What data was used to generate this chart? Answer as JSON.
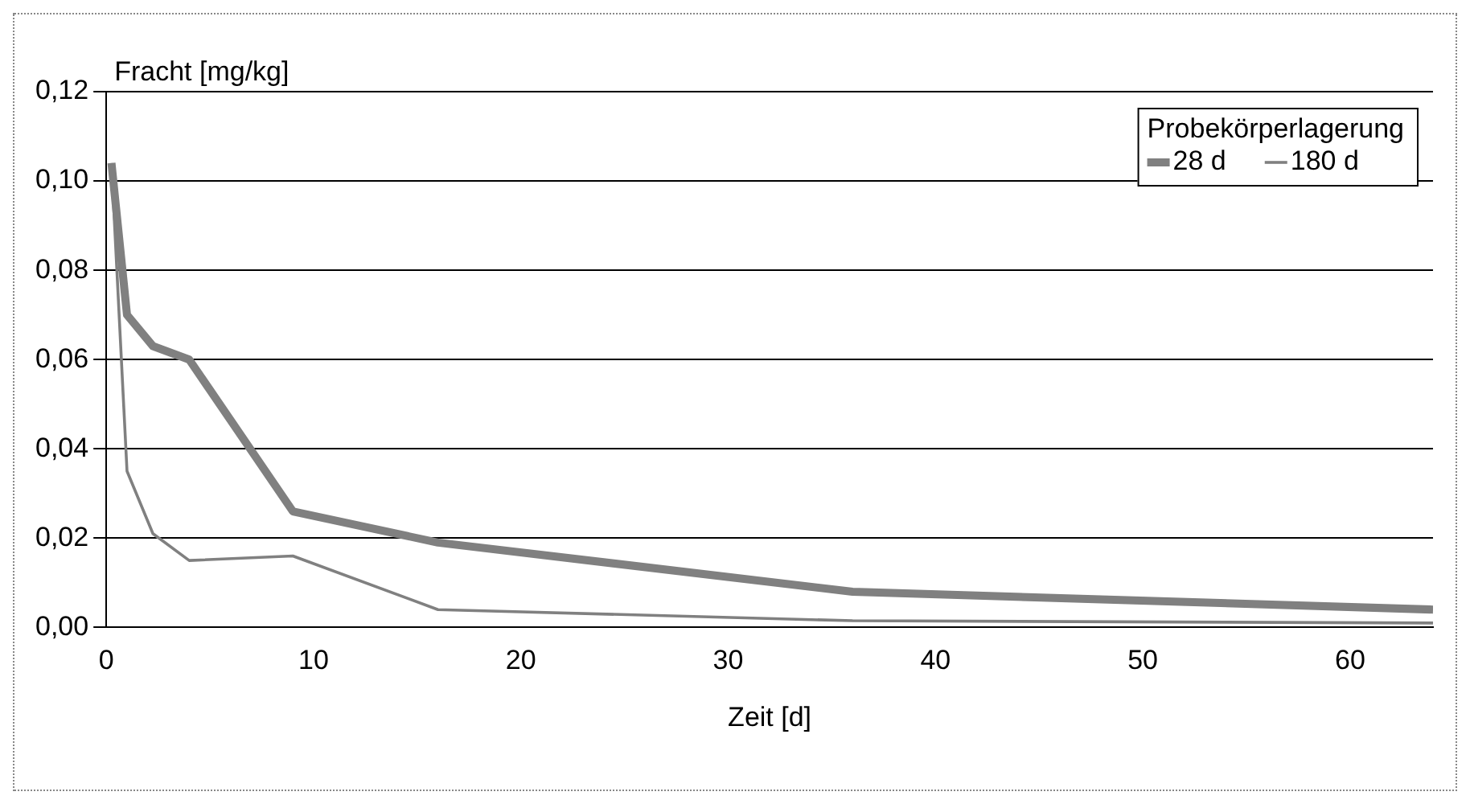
{
  "chart_data": {
    "type": "line",
    "xlabel": "Zeit [d]",
    "ylabel": "Fracht [mg/kg]",
    "legend_title": "Probekörperlagerung",
    "series": [
      {
        "name": "28 d",
        "color": "#808080",
        "x": [
          0.25,
          1,
          2.25,
          4,
          9,
          16,
          36,
          64
        ],
        "values": [
          0.104,
          0.07,
          0.063,
          0.06,
          0.026,
          0.019,
          0.008,
          0.004
        ]
      },
      {
        "name": "180 d",
        "color": "#808080",
        "x": [
          0.25,
          1,
          2.25,
          4,
          9,
          16,
          36,
          64
        ],
        "values": [
          0.104,
          0.035,
          0.021,
          0.015,
          0.016,
          0.004,
          0.0015,
          0.001
        ]
      }
    ],
    "xlim": [
      0,
      64
    ],
    "xticks": [
      0,
      10,
      20,
      30,
      40,
      50,
      60
    ],
    "ylim": [
      0,
      0.12
    ],
    "yticks": [
      {
        "value": 0,
        "label": "0,00"
      },
      {
        "value": 0.02,
        "label": "0,02"
      },
      {
        "value": 0.04,
        "label": "0,04"
      },
      {
        "value": 0.06,
        "label": "0,06"
      },
      {
        "value": 0.08,
        "label": "0,08"
      },
      {
        "value": 0.1,
        "label": "0,10"
      },
      {
        "value": 0.12,
        "label": "0,12"
      }
    ],
    "grid": "y",
    "legend": "top right",
    "marker": "none",
    "line_style": "solid"
  }
}
